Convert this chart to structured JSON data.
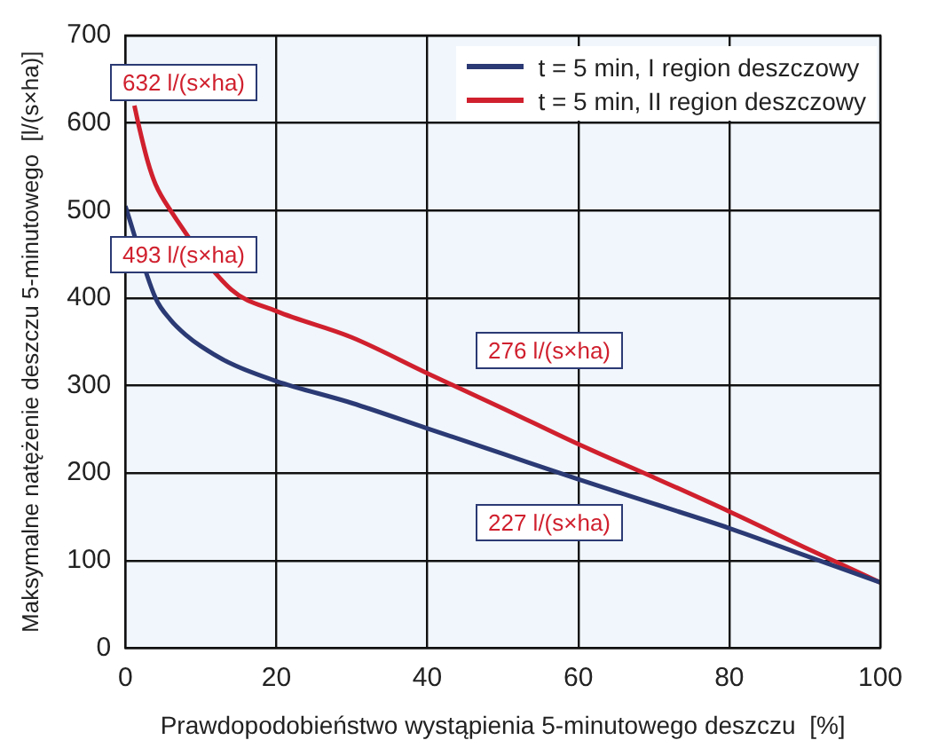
{
  "chart_data": {
    "type": "line",
    "xlabel": "Prawdopodobieństwo wystąpienia 5-minutowego deszczu  [%]",
    "ylabel": "Maksymalne natężenie deszczu 5-minutowego  [l/(s×ha)]",
    "xlim": [
      0,
      100
    ],
    "ylim": [
      0,
      700
    ],
    "xticks": [
      0,
      20,
      40,
      60,
      80,
      100
    ],
    "yticks": [
      0,
      100,
      200,
      300,
      400,
      500,
      600,
      700
    ],
    "grid": true,
    "legend": "top right",
    "marker": "none",
    "line_style": "solid",
    "series": [
      {
        "name": "t = 5 min, I region deszczowy",
        "color": "#2b3a74",
        "x": [
          0,
          4,
          6,
          8,
          10,
          14,
          20,
          30,
          40,
          50,
          60,
          70,
          80,
          90,
          100
        ],
        "values": [
          505,
          400,
          375,
          358,
          345,
          325,
          305,
          280,
          251,
          222,
          193,
          165,
          137,
          106,
          75
        ]
      },
      {
        "name": "t = 5 min, II region deszczowy",
        "color": "#d0202e",
        "x": [
          1.2,
          1.7,
          3,
          4,
          6,
          14,
          20,
          30,
          40,
          50,
          60,
          70,
          80,
          90,
          100
        ],
        "values": [
          620,
          600,
          555,
          530,
          500,
          410,
          385,
          355,
          314,
          274,
          233,
          195,
          156,
          115,
          75
        ]
      }
    ],
    "annotations": [
      "632 l/(s×ha)",
      "493 l/(s×ha)",
      "276 l/(s×ha)",
      "227 l/(s×ha)"
    ]
  }
}
